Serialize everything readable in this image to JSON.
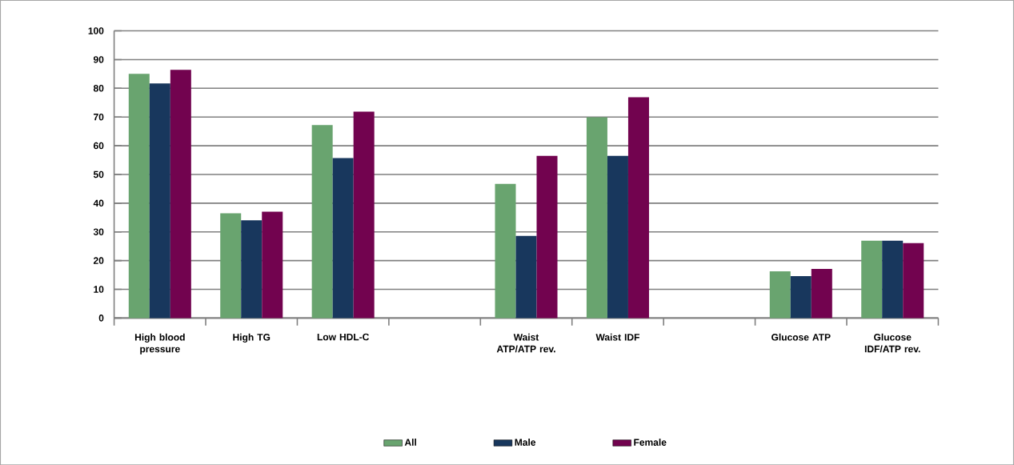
{
  "chart_data": {
    "type": "bar",
    "categories": [
      "High blood pressure",
      "High TG",
      "Low HDL-C",
      null,
      "Waist ATP/ATP rev.",
      "Waist IDF",
      null,
      "Glucose ATP",
      "Glucose IDF/ATP rev."
    ],
    "series": [
      {
        "name": "All",
        "color": "#69a46f",
        "values": [
          85,
          36.5,
          67.2,
          null,
          46.7,
          69.9,
          null,
          16.3,
          26.9
        ]
      },
      {
        "name": "Male",
        "color": "#18375d",
        "values": [
          81.7,
          34,
          55.7,
          null,
          28.6,
          56.5,
          null,
          14.6,
          26.9
        ]
      },
      {
        "name": "Female",
        "color": "#72034f",
        "values": [
          86.4,
          37,
          71.9,
          null,
          56.5,
          76.9,
          null,
          17.1,
          26.1
        ]
      }
    ],
    "ylim": [
      0,
      100
    ],
    "yticks": [
      0,
      10,
      20,
      30,
      40,
      50,
      60,
      70,
      80,
      90,
      100
    ],
    "grid": "y",
    "legend": "bottom"
  }
}
